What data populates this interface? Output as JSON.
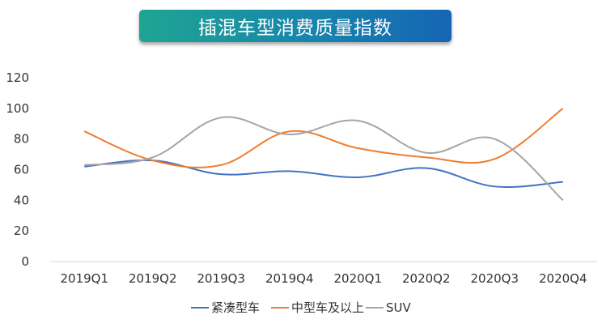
{
  "chart_data": {
    "type": "line",
    "title": "插混车型消费质量指数",
    "categories": [
      "2019Q1",
      "2019Q2",
      "2019Q3",
      "2019Q4",
      "2020Q1",
      "2020Q2",
      "2020Q3",
      "2020Q4"
    ],
    "series": [
      {
        "name": "紧凑型车",
        "color": "#4472c4",
        "values": [
          62,
          66,
          57,
          59,
          55,
          61,
          49,
          52
        ]
      },
      {
        "name": "中型车及以上",
        "color": "#ed7d31",
        "values": [
          85,
          66,
          63,
          85,
          74,
          68,
          67,
          100
        ]
      },
      {
        "name": "SUV",
        "color": "#a5a5a5",
        "values": [
          63,
          68,
          94,
          83,
          92,
          71,
          80,
          40
        ]
      }
    ],
    "yticks": [
      0,
      20,
      40,
      60,
      80,
      100,
      120
    ],
    "ylim": [
      0,
      120
    ],
    "grid": false,
    "smooth": true,
    "legend_position": "bottom"
  }
}
